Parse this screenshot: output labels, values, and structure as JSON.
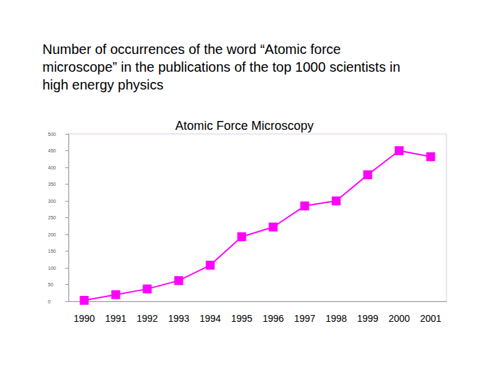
{
  "chart_data": {
    "type": "line",
    "title": "Number of occurrences of the word “Atomic force microscope” in the publications of the top 1000 scientists in high energy physics",
    "subtitle": "Atomic Force Microscopy",
    "categories": [
      "1990",
      "1991",
      "1992",
      "1993",
      "1994",
      "1995",
      "1996",
      "1997",
      "1998",
      "1999",
      "2000",
      "2001"
    ],
    "values": [
      3,
      20,
      37,
      62,
      108,
      193,
      222,
      285,
      300,
      378,
      450,
      432
    ],
    "color": "#ff00ff",
    "marker": "square",
    "ylim": [
      0,
      500
    ],
    "yticks": [
      0,
      50,
      100,
      150,
      200,
      250,
      300,
      350,
      400,
      450,
      500
    ],
    "grid": false
  }
}
